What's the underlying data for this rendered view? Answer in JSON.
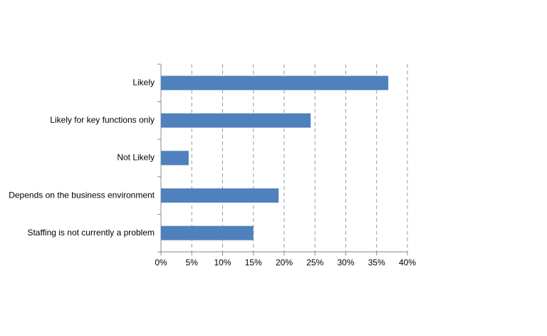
{
  "chart_data": {
    "type": "bar",
    "orientation": "horizontal",
    "categories": [
      "Likely",
      "Likely for key functions only",
      "Not Likely",
      "Depends on the business environment",
      "Staffing is not currently a problem"
    ],
    "values": [
      36.9,
      24.3,
      4.5,
      19.1,
      15.0
    ],
    "color": "#4f81bd",
    "xlim": [
      0,
      40
    ],
    "xticks": [
      {
        "value": 0,
        "label": "0%"
      },
      {
        "value": 5,
        "label": "5%"
      },
      {
        "value": 10,
        "label": "10%"
      },
      {
        "value": 15,
        "label": "15%"
      },
      {
        "value": 20,
        "label": "20%"
      },
      {
        "value": 25,
        "label": "25%"
      },
      {
        "value": 30,
        "label": "30%"
      },
      {
        "value": 35,
        "label": "35%"
      },
      {
        "value": 40,
        "label": "40%"
      }
    ],
    "grid": true
  }
}
